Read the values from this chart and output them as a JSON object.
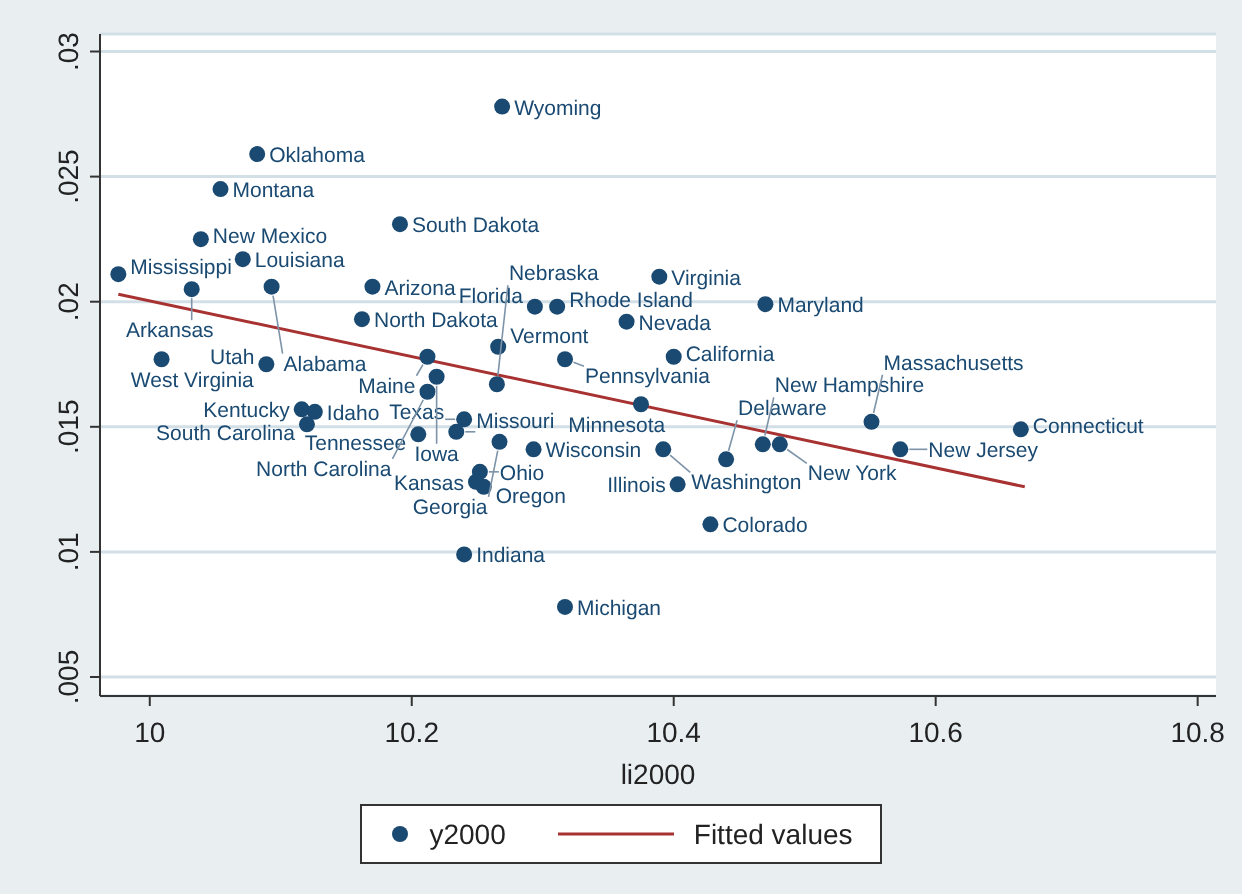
{
  "chart_data": {
    "type": "scatter",
    "xlabel": "li2000",
    "xlim": [
      9.962,
      10.814
    ],
    "ylim": [
      0.00424,
      0.0307
    ],
    "xticks": [
      10,
      10.2,
      10.4,
      10.6,
      10.8
    ],
    "yticks": [
      {
        "value": 0.005,
        "label": ".005"
      },
      {
        "value": 0.01,
        "label": ".01"
      },
      {
        "value": 0.015,
        "label": ".015"
      },
      {
        "value": 0.02,
        "label": ".02"
      },
      {
        "value": 0.025,
        "label": ".025"
      },
      {
        "value": 0.03,
        "label": ".03"
      }
    ],
    "grid": "y",
    "legend": "bottom",
    "series": [
      {
        "name": "y2000",
        "color": "#1a4a72",
        "marker": "circle",
        "x": [
          10.269,
          10.082,
          10.054,
          10.191,
          10.039,
          10.071,
          9.976,
          10.032,
          10.093,
          10.17,
          10.162,
          10.294,
          10.311,
          10.389,
          10.47,
          10.364,
          10.009,
          10.089,
          10.116,
          10.126,
          10.12,
          10.205,
          10.234,
          10.24,
          10.293,
          10.252,
          10.249,
          10.255,
          10.267,
          10.212,
          10.266,
          10.219,
          10.265,
          10.212,
          10.317,
          10.375,
          10.24,
          10.317,
          10.4,
          10.392,
          10.403,
          10.428,
          10.44,
          10.468,
          10.481,
          10.551,
          10.573,
          10.665
        ],
        "values": [
          0.0278,
          0.0259,
          0.0245,
          0.0231,
          0.0225,
          0.0217,
          0.0211,
          0.0205,
          0.0206,
          0.0206,
          0.0193,
          0.0198,
          0.0198,
          0.021,
          0.0199,
          0.0192,
          0.0177,
          0.0175,
          0.0157,
          0.0156,
          0.0151,
          0.0147,
          0.0148,
          0.0153,
          0.0141,
          0.0132,
          0.0128,
          0.0126,
          0.0144,
          0.0178,
          0.0182,
          0.017,
          0.0167,
          0.0164,
          0.0177,
          0.0159,
          0.0099,
          0.0078,
          0.0178,
          0.0141,
          0.0127,
          0.0111,
          0.0137,
          0.0143,
          0.0143,
          0.0152,
          0.0141,
          0.0149
        ]
      },
      {
        "name": "Fitted values",
        "type": "line",
        "color": "#a83232",
        "marker": "none",
        "x": [
          9.976,
          10.668
        ],
        "values": [
          0.0203,
          0.0126
        ]
      }
    ],
    "annotations": [
      {
        "text": "Wyoming",
        "x": 10.269,
        "y": 0.0278
      },
      {
        "text": "Oklahoma",
        "x": 10.082,
        "y": 0.0259
      },
      {
        "text": "Montana",
        "x": 10.054,
        "y": 0.0245
      },
      {
        "text": "South Dakota",
        "x": 10.191,
        "y": 0.0231
      },
      {
        "text": "New Mexico",
        "x": 10.039,
        "y": 0.0225
      },
      {
        "text": "Louisiana",
        "x": 10.071,
        "y": 0.0217
      },
      {
        "text": "Mississippi",
        "x": 9.976,
        "y": 0.0211
      },
      {
        "text": "Arkansas",
        "x": 10.032,
        "y": 0.0205
      },
      {
        "text": "Alabama",
        "x": 10.093,
        "y": 0.0206
      },
      {
        "text": "Arizona",
        "x": 10.17,
        "y": 0.0206
      },
      {
        "text": "North Dakota",
        "x": 10.162,
        "y": 0.0193
      },
      {
        "text": "Florida",
        "x": 10.294,
        "y": 0.0198
      },
      {
        "text": "Rhode Island",
        "x": 10.311,
        "y": 0.0198
      },
      {
        "text": "Virginia",
        "x": 10.389,
        "y": 0.021
      },
      {
        "text": "Maryland",
        "x": 10.47,
        "y": 0.0199
      },
      {
        "text": "Nevada",
        "x": 10.364,
        "y": 0.0192
      },
      {
        "text": "West Virginia",
        "x": 10.009,
        "y": 0.0177
      },
      {
        "text": "Utah",
        "x": 10.089,
        "y": 0.0175
      },
      {
        "text": "Kentucky",
        "x": 10.116,
        "y": 0.0157
      },
      {
        "text": "Idaho",
        "x": 10.126,
        "y": 0.0156
      },
      {
        "text": "South Carolina",
        "x": 10.12,
        "y": 0.0151
      },
      {
        "text": "Tennessee",
        "x": 10.205,
        "y": 0.0147
      },
      {
        "text": "Missouri",
        "x": 10.234,
        "y": 0.0148
      },
      {
        "text": "Texas",
        "x": 10.24,
        "y": 0.0153
      },
      {
        "text": "Wisconsin",
        "x": 10.293,
        "y": 0.0141
      },
      {
        "text": "Ohio",
        "x": 10.252,
        "y": 0.0132
      },
      {
        "text": "Kansas",
        "x": 10.249,
        "y": 0.0128
      },
      {
        "text": "Oregon",
        "x": 10.255,
        "y": 0.0126
      },
      {
        "text": "Georgia",
        "x": 10.267,
        "y": 0.0144
      },
      {
        "text": "Maine",
        "x": 10.212,
        "y": 0.0178
      },
      {
        "text": "Vermont",
        "x": 10.266,
        "y": 0.0182
      },
      {
        "text": "Iowa",
        "x": 10.219,
        "y": 0.017
      },
      {
        "text": "Nebraska",
        "x": 10.265,
        "y": 0.0167
      },
      {
        "text": "North Carolina",
        "x": 10.212,
        "y": 0.0164
      },
      {
        "text": "Pennsylvania",
        "x": 10.317,
        "y": 0.0177
      },
      {
        "text": "Minnesota",
        "x": 10.375,
        "y": 0.0159
      },
      {
        "text": "Indiana",
        "x": 10.24,
        "y": 0.0099
      },
      {
        "text": "Michigan",
        "x": 10.317,
        "y": 0.0078
      },
      {
        "text": "California",
        "x": 10.4,
        "y": 0.0178
      },
      {
        "text": "Washington",
        "x": 10.392,
        "y": 0.0141
      },
      {
        "text": "Illinois",
        "x": 10.403,
        "y": 0.0127
      },
      {
        "text": "Colorado",
        "x": 10.428,
        "y": 0.0111
      },
      {
        "text": "Delaware",
        "x": 10.44,
        "y": 0.0137
      },
      {
        "text": "New Hampshire",
        "x": 10.468,
        "y": 0.0143
      },
      {
        "text": "New York",
        "x": 10.481,
        "y": 0.0143
      },
      {
        "text": "Massachusetts",
        "x": 10.551,
        "y": 0.0152
      },
      {
        "text": "New Jersey",
        "x": 10.573,
        "y": 0.0141
      },
      {
        "text": "Connecticut",
        "x": 10.665,
        "y": 0.0149
      }
    ]
  }
}
